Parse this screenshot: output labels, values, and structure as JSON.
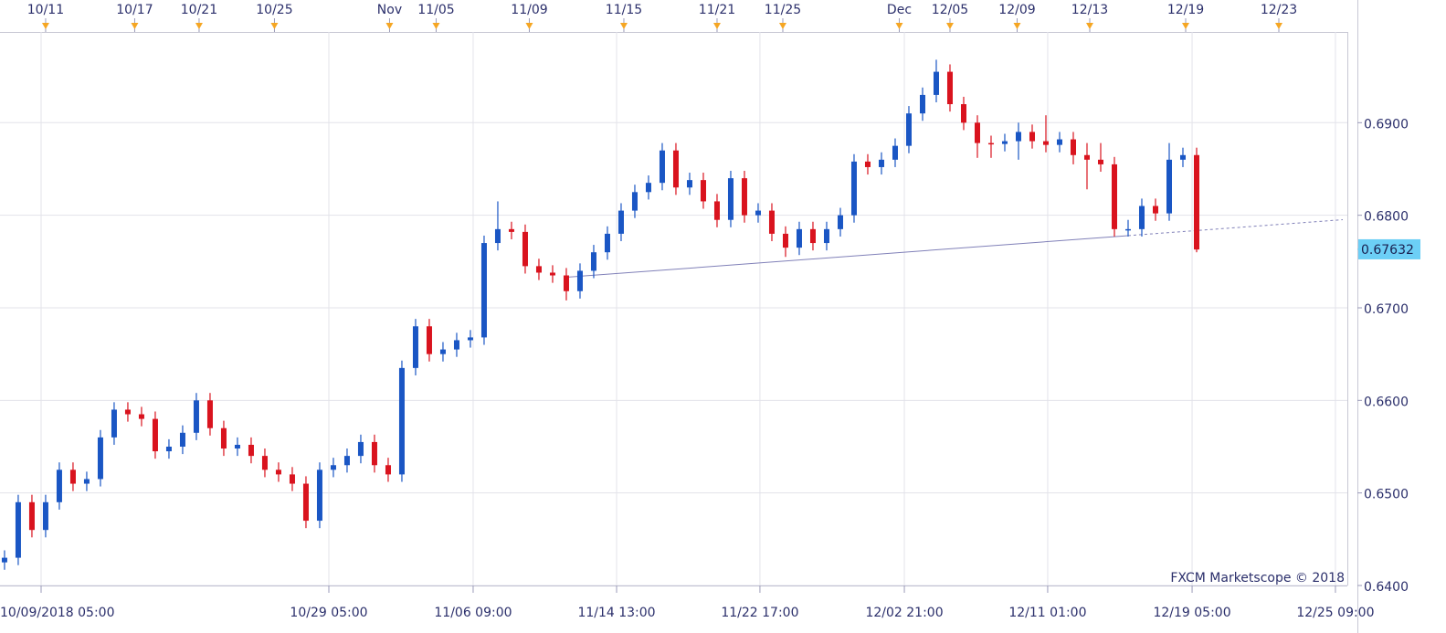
{
  "chart_data": {
    "type": "candlestick",
    "open": [
      0.6425,
      0.643,
      0.649,
      0.646,
      0.649,
      0.6525,
      0.651,
      0.6515,
      0.656,
      0.659,
      0.6585,
      0.658,
      0.6545,
      0.655,
      0.6565,
      0.66,
      0.657,
      0.6548,
      0.6552,
      0.654,
      0.6525,
      0.652,
      0.651,
      0.647,
      0.6525,
      0.653,
      0.654,
      0.6555,
      0.653,
      0.652,
      0.6635,
      0.668,
      0.665,
      0.6655,
      0.6665,
      0.6668,
      0.677,
      0.6785,
      0.6782,
      0.6745,
      0.6738,
      0.6735,
      0.6718,
      0.674,
      0.676,
      0.678,
      0.6805,
      0.6825,
      0.6835,
      0.687,
      0.683,
      0.6838,
      0.6815,
      0.6795,
      0.684,
      0.68,
      0.6805,
      0.678,
      0.6765,
      0.6785,
      0.677,
      0.6785,
      0.68,
      0.6858,
      0.6852,
      0.686,
      0.6875,
      0.691,
      0.693,
      0.6955,
      0.692,
      0.69,
      0.6878,
      0.6877,
      0.688,
      0.689,
      0.688,
      0.6876,
      0.6882,
      0.6865,
      0.686,
      0.6855,
      0.6785,
      0.6785,
      0.681,
      0.6802,
      0.686,
      0.6865
    ],
    "high": [
      0.6438,
      0.6498,
      0.6498,
      0.6498,
      0.6533,
      0.6533,
      0.6523,
      0.6568,
      0.6598,
      0.6598,
      0.6593,
      0.6588,
      0.6558,
      0.6573,
      0.6608,
      0.6608,
      0.6578,
      0.656,
      0.656,
      0.6548,
      0.6533,
      0.6528,
      0.6518,
      0.6533,
      0.6538,
      0.6548,
      0.6563,
      0.6563,
      0.6538,
      0.6643,
      0.6688,
      0.6688,
      0.6663,
      0.6673,
      0.6676,
      0.6778,
      0.6815,
      0.6793,
      0.679,
      0.6753,
      0.6746,
      0.6743,
      0.6748,
      0.6768,
      0.6788,
      0.6813,
      0.6833,
      0.6843,
      0.6878,
      0.6878,
      0.6846,
      0.6846,
      0.6823,
      0.6848,
      0.6848,
      0.6813,
      0.6813,
      0.6788,
      0.6793,
      0.6793,
      0.6793,
      0.6808,
      0.6866,
      0.6866,
      0.6868,
      0.6883,
      0.6918,
      0.6938,
      0.6968,
      0.6963,
      0.6928,
      0.6908,
      0.6886,
      0.6888,
      0.69,
      0.6898,
      0.6908,
      0.689,
      0.689,
      0.6878,
      0.6878,
      0.6863,
      0.6795,
      0.6818,
      0.6818,
      0.6878,
      0.6873,
      0.6873
    ],
    "low": [
      0.6417,
      0.6422,
      0.6452,
      0.6452,
      0.6482,
      0.6502,
      0.6502,
      0.6507,
      0.6552,
      0.6577,
      0.6572,
      0.6537,
      0.6537,
      0.6542,
      0.6557,
      0.6562,
      0.654,
      0.654,
      0.6532,
      0.6517,
      0.6512,
      0.6502,
      0.6462,
      0.6462,
      0.6517,
      0.6522,
      0.6532,
      0.6522,
      0.6512,
      0.6512,
      0.6627,
      0.6642,
      0.6642,
      0.6647,
      0.6657,
      0.666,
      0.6762,
      0.6774,
      0.6737,
      0.673,
      0.6727,
      0.6708,
      0.671,
      0.6732,
      0.6752,
      0.6772,
      0.6797,
      0.6817,
      0.6827,
      0.6822,
      0.6822,
      0.6807,
      0.6787,
      0.6787,
      0.6792,
      0.6792,
      0.6772,
      0.6755,
      0.6757,
      0.6762,
      0.6762,
      0.6777,
      0.6792,
      0.6844,
      0.6844,
      0.6852,
      0.6867,
      0.6902,
      0.6922,
      0.6912,
      0.6892,
      0.6862,
      0.6862,
      0.6869,
      0.686,
      0.6872,
      0.6868,
      0.6868,
      0.6855,
      0.6828,
      0.6847,
      0.6777,
      0.6777,
      0.6777,
      0.6794,
      0.6794,
      0.6852,
      0.676
    ],
    "close": [
      0.643,
      0.649,
      0.646,
      0.649,
      0.6525,
      0.651,
      0.6515,
      0.656,
      0.659,
      0.6585,
      0.658,
      0.6545,
      0.655,
      0.6565,
      0.66,
      0.657,
      0.6548,
      0.6552,
      0.654,
      0.6525,
      0.652,
      0.651,
      0.647,
      0.6525,
      0.653,
      0.654,
      0.6555,
      0.653,
      0.652,
      0.6635,
      0.668,
      0.665,
      0.6655,
      0.6665,
      0.6668,
      0.677,
      0.6785,
      0.6782,
      0.6745,
      0.6738,
      0.6735,
      0.6718,
      0.674,
      0.676,
      0.678,
      0.6805,
      0.6825,
      0.6835,
      0.687,
      0.683,
      0.6838,
      0.6815,
      0.6795,
      0.684,
      0.68,
      0.6805,
      0.678,
      0.6765,
      0.6785,
      0.677,
      0.6785,
      0.68,
      0.6858,
      0.6852,
      0.686,
      0.6875,
      0.691,
      0.693,
      0.6955,
      0.692,
      0.69,
      0.6878,
      0.6877,
      0.688,
      0.689,
      0.688,
      0.6876,
      0.6882,
      0.6865,
      0.686,
      0.6855,
      0.6785,
      0.6785,
      0.681,
      0.6802,
      0.686,
      0.6865,
      0.6763
    ],
    "up_color": "#1a56c4",
    "down_color": "#d9131e",
    "ylim": [
      0.64,
      0.6998
    ],
    "yticks": [
      {
        "value": 0.64,
        "label": "0.6400"
      },
      {
        "value": 0.65,
        "label": "0.6500"
      },
      {
        "value": 0.66,
        "label": "0.6600"
      },
      {
        "value": 0.67,
        "label": "0.6700"
      },
      {
        "value": 0.68,
        "label": "0.6800"
      },
      {
        "value": 0.69,
        "label": "0.6900"
      }
    ],
    "xlim": [
      -0.33,
      98
    ],
    "xticks": [
      {
        "value": 2.67,
        "label": "10/09/2018 05:00"
      },
      {
        "value": 23.67,
        "label": "10/29 05:00"
      },
      {
        "value": 34.2,
        "label": "11/06 09:00"
      },
      {
        "value": 44.67,
        "label": "11/14 13:00"
      },
      {
        "value": 55.13,
        "label": "11/22 17:00"
      },
      {
        "value": 65.67,
        "label": "12/02 21:00"
      },
      {
        "value": 76.13,
        "label": "12/11 01:00"
      },
      {
        "value": 86.67,
        "label": "12/19 05:00"
      },
      {
        "value": 97.13,
        "label": "12/25 09:00"
      }
    ],
    "top_ticks": [
      {
        "value": 3,
        "label": "10/11"
      },
      {
        "value": 9.5,
        "label": "10/17"
      },
      {
        "value": 14.2,
        "label": "10/21"
      },
      {
        "value": 19.7,
        "label": "10/25"
      },
      {
        "value": 28.1,
        "label": "Nov"
      },
      {
        "value": 31.5,
        "label": "11/05"
      },
      {
        "value": 38.3,
        "label": "11/09"
      },
      {
        "value": 45.2,
        "label": "11/15"
      },
      {
        "value": 52,
        "label": "11/21"
      },
      {
        "value": 56.8,
        "label": "11/25"
      },
      {
        "value": 65.3,
        "label": "Dec"
      },
      {
        "value": 69,
        "label": "12/05"
      },
      {
        "value": 73.9,
        "label": "12/09"
      },
      {
        "value": 79.2,
        "label": "12/13"
      },
      {
        "value": 86.2,
        "label": "12/19"
      },
      {
        "value": 93,
        "label": "12/23"
      }
    ],
    "grid": true,
    "last_price": 0.67632,
    "trendline": {
      "x": [
        41,
        82
      ],
      "y": [
        0.6733,
        0.6778
      ]
    },
    "watermark": "FXCM Marketscope © 2018"
  }
}
